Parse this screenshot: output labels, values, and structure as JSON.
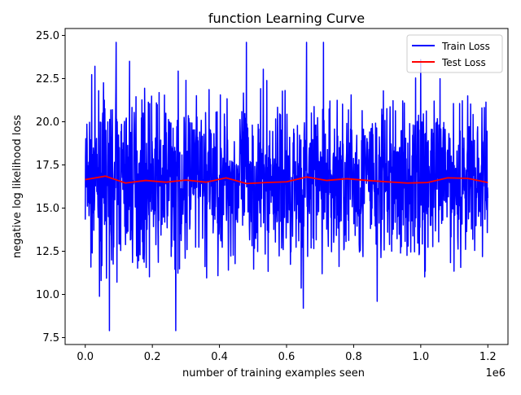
{
  "chart_data": {
    "type": "line",
    "title": "function Learning Curve",
    "xlabel": "number of training examples seen",
    "ylabel": "negative log likelihood loss",
    "x_offset_label": "1e6",
    "xlim": [
      -60000,
      1260000
    ],
    "ylim": [
      7.1,
      25.4
    ],
    "x_ticks": [
      0,
      200000,
      400000,
      600000,
      800000,
      1000000,
      1200000
    ],
    "x_tick_labels": [
      "0.0",
      "0.2",
      "0.4",
      "0.6",
      "0.8",
      "1.0",
      "1.2"
    ],
    "y_ticks": [
      7.5,
      10.0,
      12.5,
      15.0,
      17.5,
      20.0,
      22.5,
      25.0
    ],
    "y_tick_labels": [
      "7.5",
      "10.0",
      "12.5",
      "15.0",
      "17.5",
      "20.0",
      "22.5",
      "25.0"
    ],
    "grid": false,
    "legend_position": "top-right",
    "series": [
      {
        "name": "Train Loss",
        "color": "#0000ff",
        "x_start": 0,
        "x_end": 1200000,
        "n_points": 1500,
        "mean": 16.6,
        "spread": 2.3,
        "min": 7.9,
        "max": 24.6,
        "seed": 7,
        "spikes": [
          {
            "x": 72000,
            "y": 7.9
          },
          {
            "x": 270000,
            "y": 7.9
          },
          {
            "x": 650000,
            "y": 9.2
          },
          {
            "x": 870000,
            "y": 9.6
          },
          {
            "x": 1000000,
            "y": 10.2
          },
          {
            "x": 47000,
            "y": 10.8
          },
          {
            "x": 92000,
            "y": 24.6
          },
          {
            "x": 132000,
            "y": 23.5
          },
          {
            "x": 480000,
            "y": 24.6
          },
          {
            "x": 660000,
            "y": 24.6
          },
          {
            "x": 710000,
            "y": 24.6
          },
          {
            "x": 1000000,
            "y": 23.6
          },
          {
            "x": 300000,
            "y": 22.4
          },
          {
            "x": 1140000,
            "y": 21.5
          }
        ]
      },
      {
        "name": "Test Loss",
        "color": "#ff0000",
        "x": [
          0,
          60000,
          120000,
          180000,
          240000,
          300000,
          360000,
          420000,
          480000,
          540000,
          600000,
          660000,
          720000,
          780000,
          840000,
          900000,
          960000,
          1020000,
          1080000,
          1140000,
          1200000
        ],
        "y": [
          16.65,
          16.85,
          16.45,
          16.6,
          16.5,
          16.62,
          16.5,
          16.75,
          16.42,
          16.48,
          16.52,
          16.8,
          16.6,
          16.7,
          16.6,
          16.52,
          16.45,
          16.48,
          16.75,
          16.72,
          16.48
        ]
      }
    ]
  }
}
